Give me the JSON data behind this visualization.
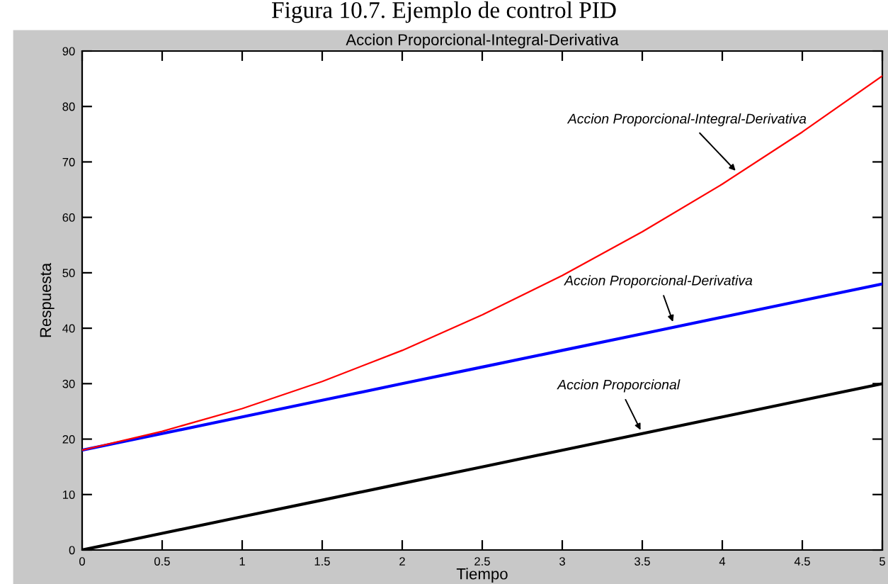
{
  "chart_data": {
    "type": "line",
    "title": "Figura 10.7. Ejemplo de control PID",
    "subtitle": "Accion Proporcional-Integral-Derivativa",
    "xlabel": "Tiempo",
    "ylabel": "Respuesta",
    "x": [
      0,
      0.5,
      1,
      1.5,
      2,
      2.5,
      3,
      3.5,
      4,
      4.5,
      5
    ],
    "series": [
      {
        "color": "#ff0000",
        "values": [
          18,
          21.4,
          25.5,
          30.4,
          36,
          42.4,
          49.5,
          57.4,
          66,
          75.4,
          85.5
        ]
      },
      {
        "color": "#0000ff",
        "values": [
          18,
          21,
          24,
          27,
          30,
          33,
          36,
          39,
          42,
          45,
          48
        ]
      },
      {
        "color": "#000000",
        "values": [
          0,
          3,
          6,
          9,
          12,
          15,
          18,
          21,
          24,
          27,
          30
        ]
      }
    ],
    "annotations": [
      {
        "text": "Accion Proporcional-Integral-Derivativa",
        "x": 4.1,
        "y": 67.9
      },
      {
        "text": "Accion Proporcional-Derivativa",
        "x": 3.7,
        "y": 40.5
      },
      {
        "text": "Accion Proporcional",
        "x": 3.5,
        "y": 21
      }
    ],
    "xlim": [
      0,
      5
    ],
    "xticks": [
      0,
      0.5,
      1,
      1.5,
      2,
      2.5,
      3,
      3.5,
      4,
      4.5,
      5
    ],
    "ylim": [
      0,
      90
    ],
    "yticks": [
      0,
      10,
      20,
      30,
      40,
      50,
      60,
      70,
      80,
      90
    ],
    "grid": false
  }
}
